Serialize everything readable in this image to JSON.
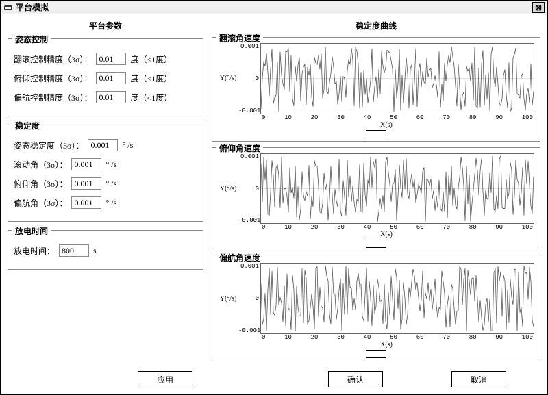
{
  "window": {
    "title": "平台模拟",
    "close_glyph": "⊠"
  },
  "left": {
    "header": "平台参数",
    "attitude": {
      "legend": "姿态控制",
      "row1": {
        "label": "翻滚控制精度（3σ）：",
        "value": "0.01",
        "unit": "度（<1度）"
      },
      "row2": {
        "label": "俯仰控制精度（3σ）：",
        "value": "0.01",
        "unit": "度（<1度）"
      },
      "row3": {
        "label": "偏航控制精度（3σ）：",
        "value": "0.01",
        "unit": "度（<1度）"
      }
    },
    "stability": {
      "legend": "稳定度",
      "row1": {
        "label": "姿态稳定度（3σ）：",
        "value": "0.001",
        "unit": "° /s"
      },
      "row2": {
        "label": "滚动角（3σ）：",
        "value": "0.001",
        "unit": "° /s"
      },
      "row3": {
        "label": "俯仰角（3σ）：",
        "value": "0.001",
        "unit": "° /s"
      },
      "row4": {
        "label": "偏航角（3σ）：",
        "value": "0.001",
        "unit": "° /s"
      }
    },
    "discharge": {
      "legend": "放电时间",
      "row1": {
        "label": "放电时间：",
        "value": "800",
        "unit": "s"
      }
    }
  },
  "right": {
    "header": "稳定度曲线",
    "charts": [
      {
        "legend": "翻滚角速度",
        "ylabel": "Y(°/s)",
        "xlabel": "X(s)"
      },
      {
        "legend": "俯仰角速度",
        "ylabel": "Y(°/s)",
        "xlabel": "X(s)"
      },
      {
        "legend": "偏航角速度",
        "ylabel": "Y(°/s)",
        "xlabel": "X(s)"
      }
    ],
    "yticks": {
      "t0": "0.001",
      "t1": "0",
      "t2": "-0.001"
    },
    "xticks": {
      "x0": "0",
      "x1": "10",
      "x2": "20",
      "x3": "30",
      "x4": "40",
      "x5": "50",
      "x6": "60",
      "x7": "70",
      "x8": "80",
      "x9": "90",
      "x10": "100"
    },
    "chart_style": {
      "type": "line",
      "ylim": [
        -0.001,
        0.001
      ],
      "xlim": [
        0,
        100
      ],
      "line_color": "#555555",
      "line_width": 0.8,
      "background": "#ffffff",
      "border_color": "#666666",
      "noise_amplitude": 0.001,
      "sample_count": 200
    }
  },
  "buttons": {
    "apply": "应用",
    "ok": "确认",
    "cancel": "取消"
  },
  "colors": {
    "window_bg": "#ffffff",
    "border": "#888888",
    "titlebar_bg": "#f0f0f0"
  }
}
